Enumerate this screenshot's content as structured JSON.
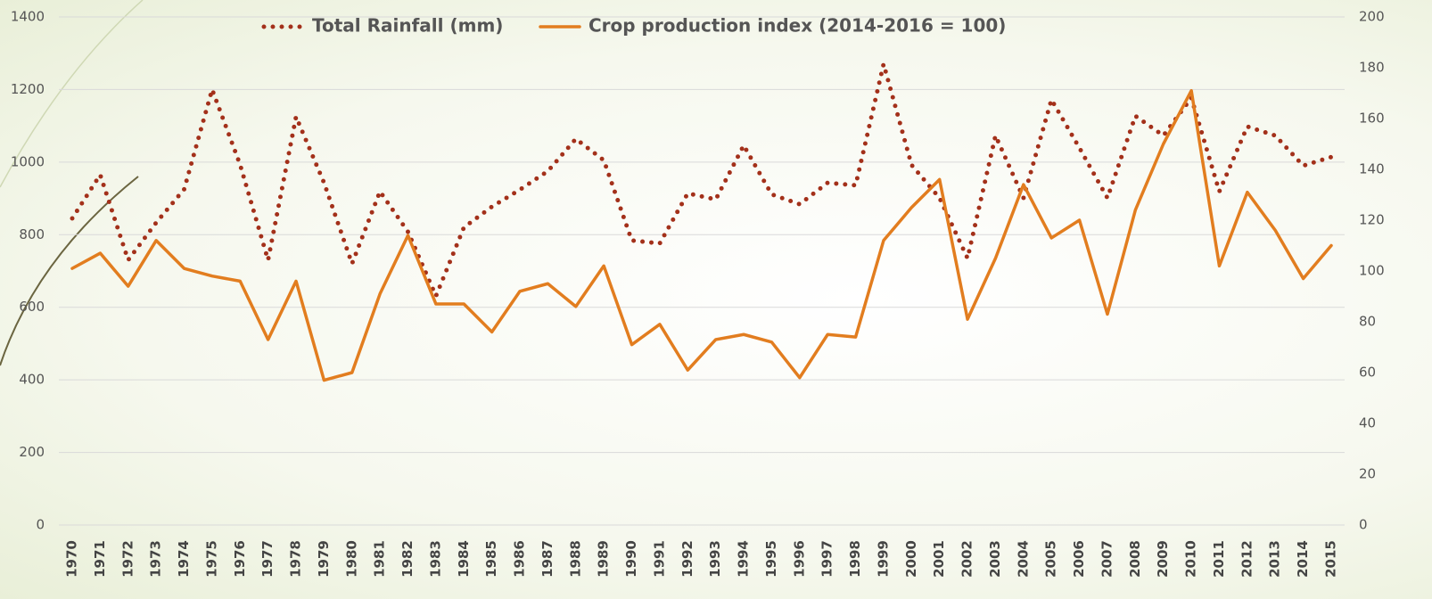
{
  "chart_data": {
    "type": "line",
    "categories": [
      "1970",
      "1971",
      "1972",
      "1973",
      "1974",
      "1975",
      "1976",
      "1977",
      "1978",
      "1979",
      "1980",
      "1981",
      "1982",
      "1983",
      "1984",
      "1985",
      "1986",
      "1987",
      "1988",
      "1989",
      "1990",
      "1991",
      "1992",
      "1993",
      "1994",
      "1995",
      "1996",
      "1997",
      "1998",
      "1999",
      "2000",
      "2001",
      "2002",
      "2003",
      "2004",
      "2005",
      "2006",
      "2007",
      "2008",
      "2009",
      "2010",
      "2011",
      "2012",
      "2013",
      "2014",
      "2015"
    ],
    "series": [
      {
        "name": "Total Rainfall (mm)",
        "color": "#a3301a",
        "style": "dotted",
        "values": [
          845,
          965,
          730,
          833,
          925,
          1200,
          993,
          730,
          1125,
          943,
          720,
          919,
          808,
          631,
          820,
          877,
          924,
          975,
          1064,
          1005,
          784,
          776,
          914,
          897,
          1046,
          911,
          884,
          943,
          936,
          1270,
          992,
          901,
          735,
          1073,
          901,
          1172,
          1039,
          901,
          1127,
          1073,
          1177,
          919,
          1098,
          1073,
          990,
          1014
        ]
      },
      {
        "name": "Crop production index (2014-2016 = 100)",
        "color": "#e27d1f",
        "style": "solid",
        "axis": "y2",
        "values": [
          101,
          107,
          94,
          112,
          101,
          98,
          96,
          73,
          96,
          57,
          60,
          91,
          114,
          87,
          87,
          76,
          92,
          95,
          86,
          102,
          71,
          79,
          61,
          73,
          75,
          72,
          58,
          75,
          74,
          112,
          125,
          136,
          81,
          105,
          134,
          113,
          120,
          83,
          124,
          150,
          171,
          102,
          131,
          116,
          97,
          110
        ]
      }
    ],
    "ylim": [
      0,
      1400
    ],
    "yticks": [
      0,
      200,
      400,
      600,
      800,
      1000,
      1200,
      1400
    ],
    "y2lim": [
      0,
      200
    ],
    "y2ticks": [
      0,
      20,
      40,
      60,
      80,
      100,
      120,
      140,
      160,
      180,
      200
    ],
    "grid": true,
    "legend": "top"
  }
}
